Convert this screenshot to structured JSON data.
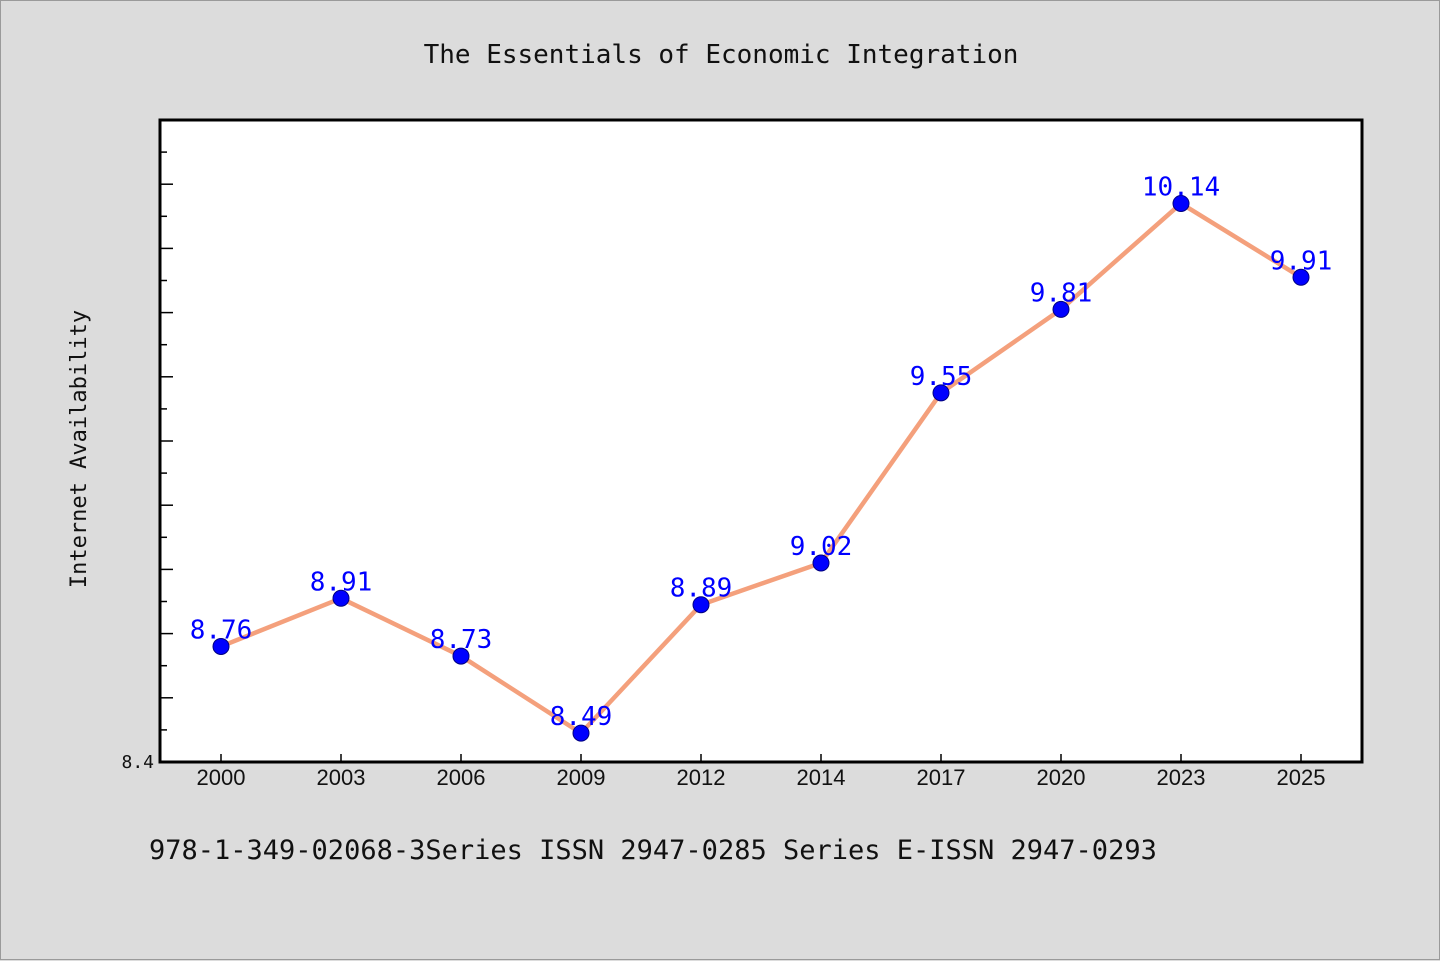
{
  "chart_data": {
    "type": "line",
    "title": "The Essentials of Economic Integration",
    "xlabel": "",
    "ylabel": "Internet Availability",
    "categories": [
      "2000",
      "2003",
      "2006",
      "2009",
      "2012",
      "2014",
      "2017",
      "2020",
      "2023",
      "2025"
    ],
    "series": [
      {
        "values": [
          8.76,
          8.91,
          8.73,
          8.49,
          8.89,
          9.02,
          9.55,
          9.81,
          10.14,
          9.91
        ],
        "line_color": "#f4a07c",
        "marker_color": "#0000ff",
        "label_color": "#0000ff"
      }
    ],
    "ylim": [
      8.4,
      10.4
    ],
    "y_tick_labels": [
      "8.4"
    ],
    "y_minor_tick_step": 0.1,
    "y_tick_labeled_every": 0.2,
    "grid": false,
    "legend": "none",
    "data_labels": true
  },
  "footer": {
    "text": "978-1-349-02068-3Series ISSN 2947-0285 Series E-ISSN 2947-0293"
  },
  "colors": {
    "background": "#dcdcdc",
    "plot_background": "#ffffff",
    "axis": "#000000"
  }
}
